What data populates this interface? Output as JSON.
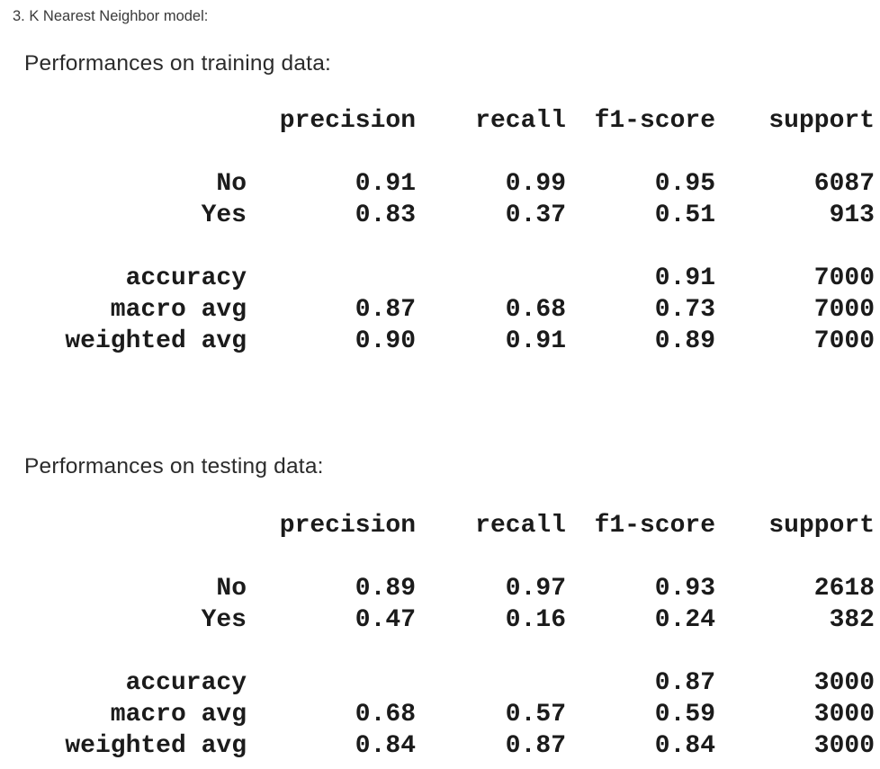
{
  "document": {
    "title": "3. K Nearest Neighbor model:"
  },
  "columns": {
    "precision": "precision",
    "recall": "recall",
    "f1_score": "f1-score",
    "support": "support"
  },
  "training": {
    "heading": "Performances on training data:",
    "rows": [
      {
        "label": "No",
        "precision": "0.91",
        "recall": "0.99",
        "f1_score": "0.95",
        "support": "6087"
      },
      {
        "label": "Yes",
        "precision": "0.83",
        "recall": "0.37",
        "f1_score": "0.51",
        "support": "913"
      },
      {
        "label": "accuracy",
        "precision": "",
        "recall": "",
        "f1_score": "0.91",
        "support": "7000"
      },
      {
        "label": "macro avg",
        "precision": "0.87",
        "recall": "0.68",
        "f1_score": "0.73",
        "support": "7000"
      },
      {
        "label": "weighted avg",
        "precision": "0.90",
        "recall": "0.91",
        "f1_score": "0.89",
        "support": "7000"
      }
    ]
  },
  "testing": {
    "heading": "Performances on testing data:",
    "rows": [
      {
        "label": "No",
        "precision": "0.89",
        "recall": "0.97",
        "f1_score": "0.93",
        "support": "2618"
      },
      {
        "label": "Yes",
        "precision": "0.47",
        "recall": "0.16",
        "f1_score": "0.24",
        "support": "382"
      },
      {
        "label": "accuracy",
        "precision": "",
        "recall": "",
        "f1_score": "0.87",
        "support": "3000"
      },
      {
        "label": "macro avg",
        "precision": "0.68",
        "recall": "0.57",
        "f1_score": "0.59",
        "support": "3000"
      },
      {
        "label": "weighted avg",
        "precision": "0.84",
        "recall": "0.87",
        "f1_score": "0.84",
        "support": "3000"
      }
    ]
  },
  "colors": {
    "background": "#ffffff",
    "title_text": "#3a3a3a",
    "heading_text": "#2b2b2b",
    "table_text": "#1b1b1b"
  }
}
